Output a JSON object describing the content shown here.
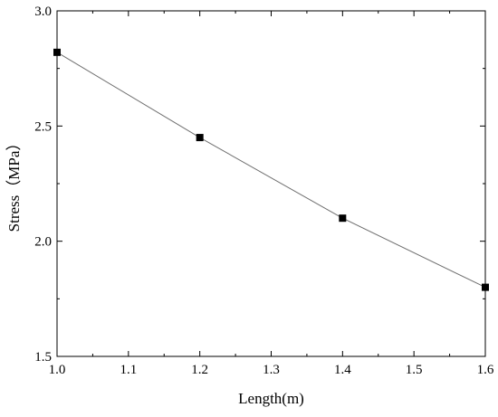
{
  "chart_data": {
    "type": "line",
    "title": "",
    "xlabel": "Length(m)",
    "ylabel": "Stress（MPa）",
    "xlim": [
      1.0,
      1.6
    ],
    "ylim": [
      1.5,
      3.0
    ],
    "x_ticks": [
      "1.0",
      "1.1",
      "1.2",
      "1.3",
      "1.4",
      "1.5",
      "1.6"
    ],
    "y_ticks": [
      "1.5",
      "2.0",
      "2.5",
      "3.0"
    ],
    "grid": false,
    "legend": "none",
    "series": [
      {
        "x": [
          1.0,
          1.2,
          1.4,
          1.6
        ],
        "values": [
          2.82,
          2.45,
          2.1,
          1.8
        ],
        "line_color": "#6e6e6e",
        "marker": "square",
        "marker_color": "#000000"
      }
    ]
  }
}
